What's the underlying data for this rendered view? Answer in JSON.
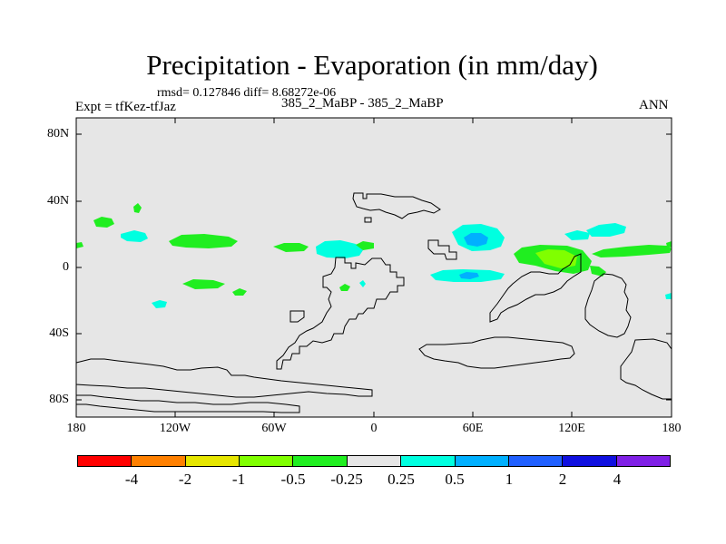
{
  "header": {
    "title": "Precipitation - Evaporation (in mm/day)",
    "stats": "rmsd= 0.127846 diff= 8.68272e-06",
    "expt": "Expt = tfKez-tfJaz",
    "runs": "385_2_MaBP - 385_2_MaBP",
    "season": "ANN"
  },
  "map": {
    "lat_ticks": [
      "80N",
      "40N",
      "0",
      "40S",
      "80S"
    ],
    "lon_ticks": [
      "180",
      "120W",
      "60W",
      "0",
      "60E",
      "120E",
      "180"
    ],
    "background_color": "#e6e6e6",
    "coastline_color": "#000000"
  },
  "colorbar": {
    "colors": [
      "#ff0000",
      "#ff8000",
      "#e6e600",
      "#80ff00",
      "#20ee20",
      "#e6e6e6",
      "#00ffe0",
      "#00b0ff",
      "#2060ff",
      "#1010e0",
      "#8020e6"
    ],
    "labels": [
      "-4",
      "-2",
      "-1",
      "-0.5",
      "-0.25",
      "0.25",
      "0.5",
      "1",
      "2",
      "4"
    ]
  }
}
